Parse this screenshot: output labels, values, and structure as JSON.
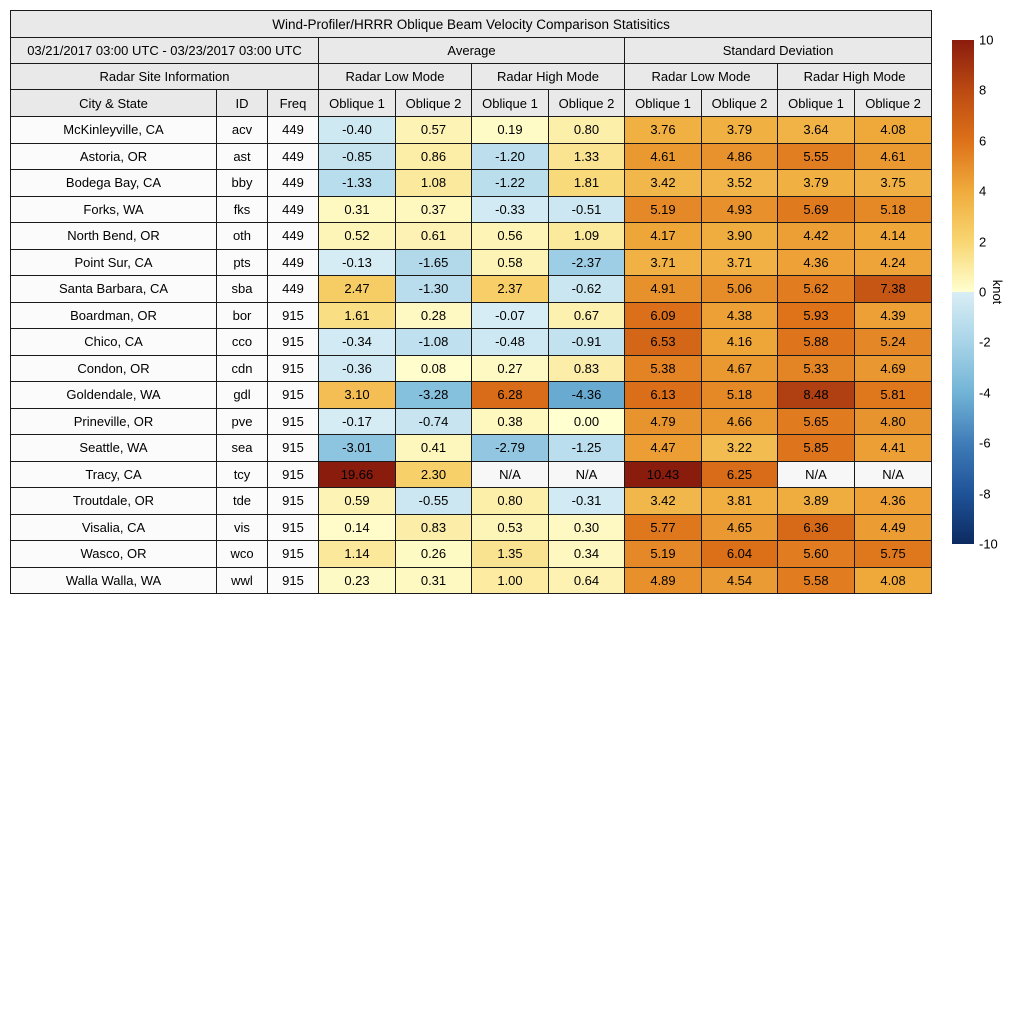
{
  "chart_data": {
    "type": "heatmap-table",
    "title": "Wind-Profiler/HRRR Oblique Beam Velocity Comparison Statisitics",
    "date_range": "03/21/2017 03:00 UTC - 03/23/2017 03:00 UTC",
    "group_headers": [
      "Average",
      "Standard Deviation"
    ],
    "site_info_header": "Radar Site Information",
    "mode_headers": [
      "Radar Low Mode",
      "Radar High Mode",
      "Radar Low Mode",
      "Radar High Mode"
    ],
    "column_headers": [
      "City & State",
      "ID",
      "Freq",
      "Oblique 1",
      "Oblique 2",
      "Oblique 1",
      "Oblique 2",
      "Oblique 1",
      "Oblique 2",
      "Oblique 1",
      "Oblique 2"
    ],
    "na_label": "N/A",
    "rows": [
      {
        "city": "McKinleyville, CA",
        "id": "acv",
        "freq": "449",
        "values": [
          -0.4,
          0.57,
          0.19,
          0.8,
          3.76,
          3.79,
          3.64,
          4.08
        ]
      },
      {
        "city": "Astoria, OR",
        "id": "ast",
        "freq": "449",
        "values": [
          -0.85,
          0.86,
          -1.2,
          1.33,
          4.61,
          4.86,
          5.55,
          4.61
        ]
      },
      {
        "city": "Bodega Bay, CA",
        "id": "bby",
        "freq": "449",
        "values": [
          -1.33,
          1.08,
          -1.22,
          1.81,
          3.42,
          3.52,
          3.79,
          3.75
        ]
      },
      {
        "city": "Forks, WA",
        "id": "fks",
        "freq": "449",
        "values": [
          0.31,
          0.37,
          -0.33,
          -0.51,
          5.19,
          4.93,
          5.69,
          5.18
        ]
      },
      {
        "city": "North Bend, OR",
        "id": "oth",
        "freq": "449",
        "values": [
          0.52,
          0.61,
          0.56,
          1.09,
          4.17,
          3.9,
          4.42,
          4.14
        ]
      },
      {
        "city": "Point Sur, CA",
        "id": "pts",
        "freq": "449",
        "values": [
          -0.13,
          -1.65,
          0.58,
          -2.37,
          3.71,
          3.71,
          4.36,
          4.24
        ]
      },
      {
        "city": "Santa Barbara, CA",
        "id": "sba",
        "freq": "449",
        "values": [
          2.47,
          -1.3,
          2.37,
          -0.62,
          4.91,
          5.06,
          5.62,
          7.38
        ]
      },
      {
        "city": "Boardman, OR",
        "id": "bor",
        "freq": "915",
        "values": [
          1.61,
          0.28,
          -0.07,
          0.67,
          6.09,
          4.38,
          5.93,
          4.39
        ]
      },
      {
        "city": "Chico, CA",
        "id": "cco",
        "freq": "915",
        "values": [
          -0.34,
          -1.08,
          -0.48,
          -0.91,
          6.53,
          4.16,
          5.88,
          5.24
        ]
      },
      {
        "city": "Condon, OR",
        "id": "cdn",
        "freq": "915",
        "values": [
          -0.36,
          0.08,
          0.27,
          0.83,
          5.38,
          4.67,
          5.33,
          4.69
        ]
      },
      {
        "city": "Goldendale, WA",
        "id": "gdl",
        "freq": "915",
        "values": [
          3.1,
          -3.28,
          6.28,
          -4.36,
          6.13,
          5.18,
          8.48,
          5.81
        ]
      },
      {
        "city": "Prineville, OR",
        "id": "pve",
        "freq": "915",
        "values": [
          -0.17,
          -0.74,
          0.38,
          0.0,
          4.79,
          4.66,
          5.65,
          4.8
        ]
      },
      {
        "city": "Seattle, WA",
        "id": "sea",
        "freq": "915",
        "values": [
          -3.01,
          0.41,
          -2.79,
          -1.25,
          4.47,
          3.22,
          5.85,
          4.41
        ]
      },
      {
        "city": "Tracy, CA",
        "id": "tcy",
        "freq": "915",
        "values": [
          19.66,
          2.3,
          null,
          null,
          10.43,
          6.25,
          null,
          null
        ]
      },
      {
        "city": "Troutdale, OR",
        "id": "tde",
        "freq": "915",
        "values": [
          0.59,
          -0.55,
          0.8,
          -0.31,
          3.42,
          3.81,
          3.89,
          4.36
        ]
      },
      {
        "city": "Visalia, CA",
        "id": "vis",
        "freq": "915",
        "values": [
          0.14,
          0.83,
          0.53,
          0.3,
          5.77,
          4.65,
          6.36,
          4.49
        ]
      },
      {
        "city": "Wasco, OR",
        "id": "wco",
        "freq": "915",
        "values": [
          1.14,
          0.26,
          1.35,
          0.34,
          5.19,
          6.04,
          5.6,
          5.75
        ]
      },
      {
        "city": "Walla Walla, WA",
        "id": "wwl",
        "freq": "915",
        "values": [
          0.23,
          0.31,
          1.0,
          0.64,
          4.89,
          4.54,
          5.58,
          4.08
        ]
      }
    ],
    "colorbar": {
      "label": "knot",
      "min": -10,
      "max": 10,
      "ticks": [
        10,
        8,
        6,
        4,
        2,
        0,
        -2,
        -4,
        -6,
        -8,
        -10
      ],
      "positive_anchors": [
        [
          0,
          "#ffffd0"
        ],
        [
          2,
          "#f8d671"
        ],
        [
          4,
          "#f0ab3c"
        ],
        [
          6,
          "#dd7119"
        ],
        [
          8,
          "#bc4a12"
        ],
        [
          10,
          "#8a1c0e"
        ]
      ],
      "negative_anchors": [
        [
          -10,
          "#0c2a60"
        ],
        [
          -8,
          "#1f5398"
        ],
        [
          -6,
          "#3f7cb8"
        ],
        [
          -4,
          "#72b4d6"
        ],
        [
          -2,
          "#a8d4e8"
        ],
        [
          0,
          "#d9eef5"
        ]
      ]
    },
    "colors": {
      "header_bg": "#e9e9e9",
      "row_label_bg": "#fbfbfb",
      "na_bg": "#f7f7f7",
      "border": "#1a1a1a",
      "text": "#000000"
    }
  }
}
